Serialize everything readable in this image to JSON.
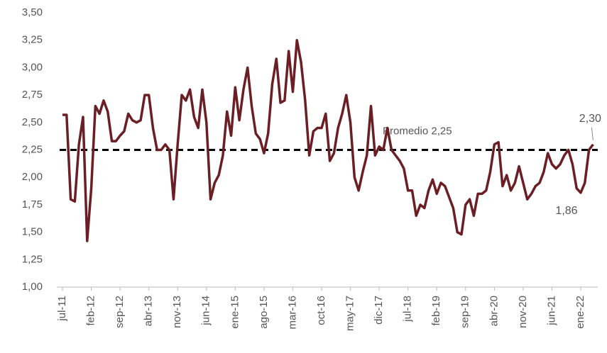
{
  "chart_data": {
    "type": "line",
    "categories": [
      "jul-11",
      null,
      null,
      null,
      null,
      null,
      null,
      "feb-12",
      null,
      null,
      null,
      null,
      null,
      null,
      "sep-12",
      null,
      null,
      null,
      null,
      null,
      null,
      "abr-13",
      null,
      null,
      null,
      null,
      null,
      null,
      "nov-13",
      null,
      null,
      null,
      null,
      null,
      null,
      "jun-14",
      null,
      null,
      null,
      null,
      null,
      null,
      "ene-15",
      null,
      null,
      null,
      null,
      null,
      null,
      "ago-15",
      null,
      null,
      null,
      null,
      null,
      null,
      "mar-16",
      null,
      null,
      null,
      null,
      null,
      null,
      "oct-16",
      null,
      null,
      null,
      null,
      null,
      null,
      "may-17",
      null,
      null,
      null,
      null,
      null,
      null,
      "dic-17",
      null,
      null,
      null,
      null,
      null,
      null,
      "jul-18",
      null,
      null,
      null,
      null,
      null,
      null,
      "feb-19",
      null,
      null,
      null,
      null,
      null,
      null,
      "sep-19",
      null,
      null,
      null,
      null,
      null,
      null,
      "abr-20",
      null,
      null,
      null,
      null,
      null,
      null,
      "nov-20",
      null,
      null,
      null,
      null,
      null,
      null,
      "jun-21",
      null,
      null,
      null,
      null,
      null,
      null,
      "ene-22",
      null,
      null,
      null
    ],
    "values": [
      2.57,
      2.57,
      1.8,
      1.78,
      2.3,
      2.55,
      1.42,
      1.9,
      2.65,
      2.58,
      2.7,
      2.6,
      2.33,
      2.33,
      2.38,
      2.42,
      2.58,
      2.52,
      2.5,
      2.52,
      2.75,
      2.75,
      2.45,
      2.25,
      2.25,
      2.3,
      2.25,
      1.8,
      2.3,
      2.75,
      2.7,
      2.8,
      2.55,
      2.45,
      2.8,
      2.5,
      1.8,
      1.95,
      2.02,
      2.2,
      2.6,
      2.38,
      2.82,
      2.52,
      2.8,
      3.0,
      2.65,
      2.4,
      2.35,
      2.22,
      2.4,
      2.85,
      3.08,
      2.68,
      2.7,
      3.15,
      2.78,
      3.25,
      3.05,
      2.7,
      2.2,
      2.42,
      2.45,
      2.45,
      2.58,
      2.15,
      2.22,
      2.45,
      2.58,
      2.75,
      2.5,
      2.0,
      1.88,
      2.05,
      2.2,
      2.65,
      2.2,
      2.28,
      2.25,
      2.45,
      2.25,
      2.2,
      2.15,
      2.08,
      1.88,
      1.88,
      1.65,
      1.75,
      1.72,
      1.88,
      1.98,
      1.85,
      1.95,
      1.92,
      1.82,
      1.72,
      1.5,
      1.48,
      1.75,
      1.8,
      1.65,
      1.85,
      1.85,
      1.88,
      2.05,
      2.3,
      2.32,
      1.92,
      2.02,
      1.88,
      1.95,
      2.1,
      1.95,
      1.8,
      1.85,
      1.92,
      1.95,
      2.05,
      2.22,
      2.12,
      2.08,
      2.12,
      2.2,
      2.25,
      2.12,
      1.9,
      1.86,
      1.95,
      2.25,
      2.3
    ],
    "value_labels": [
      null,
      null,
      null,
      null,
      null,
      null,
      null,
      null,
      null,
      null,
      null,
      null,
      null,
      null,
      null,
      null,
      null,
      null,
      null,
      null,
      null,
      null,
      null,
      null,
      null,
      null,
      null,
      null,
      null,
      null,
      null,
      null,
      null,
      null,
      null,
      null,
      null,
      null,
      null,
      null,
      null,
      null,
      null,
      null,
      null,
      null,
      null,
      null,
      null,
      null,
      null,
      null,
      null,
      null,
      null,
      null,
      null,
      null,
      null,
      null,
      null,
      null,
      null,
      null,
      null,
      null,
      null,
      null,
      null,
      null,
      null,
      null,
      null,
      null,
      null,
      null,
      null,
      null,
      null,
      null,
      null,
      null,
      null,
      null,
      null,
      null,
      null,
      null,
      null,
      null,
      null,
      null,
      null,
      null,
      null,
      null,
      null,
      null,
      null,
      null,
      null,
      null,
      null,
      null,
      null,
      null,
      null,
      null,
      null,
      null,
      null,
      null,
      null,
      null,
      null,
      null,
      null,
      null,
      null,
      null,
      null,
      null,
      null,
      null,
      null,
      null,
      "1,86",
      null,
      null,
      "2,30"
    ],
    "color": "#6b1f24",
    "reference_line": {
      "value": 2.25,
      "label": "Promedio 2,25"
    },
    "ylim": [
      1,
      3.5
    ],
    "yticks": [
      {
        "value": 1,
        "label": "1,00"
      },
      {
        "value": 1.25,
        "label": "1,25"
      },
      {
        "value": 1.5,
        "label": "1,50"
      },
      {
        "value": 1.75,
        "label": "1,75"
      },
      {
        "value": 2,
        "label": "2,00"
      },
      {
        "value": 2.25,
        "label": "2,25"
      },
      {
        "value": 2.5,
        "label": "2,50"
      },
      {
        "value": 2.75,
        "label": "2,75"
      },
      {
        "value": 3,
        "label": "3,00"
      },
      {
        "value": 3.25,
        "label": "3,25"
      },
      {
        "value": 3.5,
        "label": "3,50"
      }
    ],
    "grid": false
  }
}
